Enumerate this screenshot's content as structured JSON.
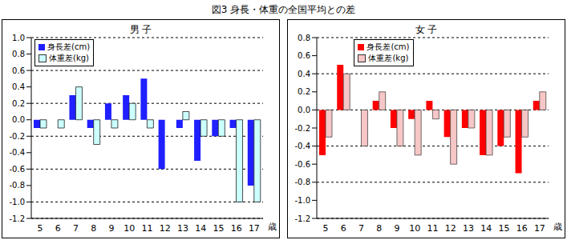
{
  "title": "図3 身長・体重の全国平均との差",
  "chart_data": [
    {
      "type": "bar",
      "title": "男 子",
      "categories": [
        "5",
        "6",
        "7",
        "8",
        "9",
        "10",
        "11",
        "12",
        "13",
        "14",
        "15",
        "16",
        "17"
      ],
      "x_label": "歳",
      "series": [
        {
          "name": "身長差(cm)",
          "color": "#1f1fff",
          "values": [
            -0.1,
            0.0,
            0.3,
            -0.1,
            0.2,
            0.3,
            0.5,
            -0.6,
            -0.1,
            -0.5,
            -0.2,
            -0.1,
            -0.8
          ]
        },
        {
          "name": "体重差(kg)",
          "color": "#ccffff",
          "values": [
            -0.1,
            -0.1,
            0.4,
            -0.3,
            -0.1,
            0.2,
            -0.1,
            0.0,
            0.1,
            -0.2,
            -0.2,
            -1.0,
            -1.0
          ]
        }
      ],
      "ylim": [
        -1.2,
        1.0
      ],
      "yticks": [
        -1.2,
        {
          "value": -1.0,
          "label": "-1.0"
        },
        -0.8,
        -0.6,
        -0.4,
        -0.2,
        {
          "value": 0,
          "label": "0.0"
        },
        0.2,
        0.4,
        0.6,
        0.8,
        {
          "value": 1.0,
          "label": "1.0"
        }
      ],
      "grid": true,
      "legend": "upper left"
    },
    {
      "type": "bar",
      "title": "女 子",
      "categories": [
        "5",
        "6",
        "7",
        "8",
        "9",
        "10",
        "11",
        "12",
        "13",
        "14",
        "15",
        "16",
        "17"
      ],
      "x_label": "歳",
      "series": [
        {
          "name": "身長差(cm)",
          "color": "#ff0000",
          "values": [
            -0.5,
            0.5,
            0.0,
            0.1,
            -0.2,
            -0.1,
            0.1,
            -0.3,
            -0.2,
            -0.5,
            -0.4,
            -0.7,
            0.1
          ]
        },
        {
          "name": "体重差(kg)",
          "color": "#f7c6c6",
          "values": [
            -0.3,
            0.4,
            -0.4,
            0.2,
            -0.4,
            -0.5,
            -0.1,
            -0.6,
            -0.2,
            -0.5,
            -0.3,
            -0.3,
            0.2
          ]
        }
      ],
      "ylim": [
        -1.2,
        0.8
      ],
      "yticks": [
        -1.2,
        {
          "value": -1.0,
          "label": "-1.0"
        },
        -0.8,
        -0.6,
        -0.4,
        -0.2,
        {
          "value": 0,
          "label": "0.0"
        },
        0.2,
        0.4,
        0.6,
        0.8
      ],
      "grid": true,
      "legend": "upper left"
    }
  ]
}
